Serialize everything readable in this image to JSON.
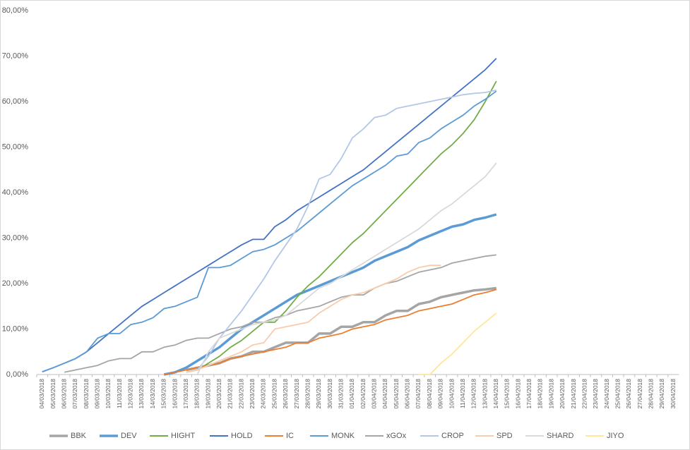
{
  "chart_data": {
    "type": "line",
    "categories": [
      "04/03/2018",
      "05/03/2018",
      "06/03/2018",
      "07/03/2018",
      "08/03/2018",
      "09/03/2018",
      "10/03/2018",
      "11/03/2018",
      "12/03/2018",
      "13/03/2018",
      "14/03/2018",
      "15/03/2018",
      "16/03/2018",
      "17/03/2018",
      "18/03/2018",
      "19/03/2018",
      "20/03/2018",
      "21/03/2018",
      "22/03/2018",
      "23/03/2018",
      "24/03/2018",
      "25/03/2018",
      "26/03/2018",
      "27/03/2018",
      "28/03/2018",
      "29/03/2018",
      "30/03/2018",
      "31/03/2018",
      "01/04/2018",
      "02/04/2018",
      "03/04/2018",
      "04/04/2018",
      "05/04/2018",
      "06/04/2018",
      "07/04/2018",
      "08/04/2018",
      "09/04/2018",
      "10/04/2018",
      "11/04/2018",
      "12/04/2018",
      "13/04/2018",
      "14/04/2018",
      "15/04/2018",
      "16/04/2018",
      "17/04/2018",
      "18/04/2018",
      "19/04/2018",
      "20/04/2018",
      "21/04/2018",
      "22/04/2018",
      "23/04/2018",
      "24/04/2018",
      "25/04/2018",
      "26/04/2018",
      "27/04/2018",
      "28/04/2018",
      "29/04/2018",
      "30/04/2018"
    ],
    "ylim": [
      0,
      80
    ],
    "yticks": [
      {
        "value": 0,
        "label": "0,00%"
      },
      {
        "value": 10,
        "label": "10,00%"
      },
      {
        "value": 20,
        "label": "20,00%"
      },
      {
        "value": 30,
        "label": "30,00%"
      },
      {
        "value": 40,
        "label": "40,00%"
      },
      {
        "value": 50,
        "label": "50,00%"
      },
      {
        "value": 60,
        "label": "60,00%"
      },
      {
        "value": 70,
        "label": "70,00%"
      },
      {
        "value": 80,
        "label": "80,00%"
      }
    ],
    "grid": false,
    "legend": "bottom",
    "series": [
      {
        "name": "BBK",
        "color": "#a5a5a5",
        "values": [
          null,
          null,
          null,
          null,
          null,
          null,
          null,
          null,
          null,
          null,
          null,
          null,
          null,
          1,
          1.5,
          2,
          2.5,
          3.5,
          4,
          5,
          5,
          6,
          7,
          7,
          7,
          9,
          9,
          10.5,
          10.5,
          11.5,
          11.5,
          13,
          14,
          14,
          15.5,
          16,
          17,
          17.5,
          18,
          18.5,
          18.7,
          19,
          null,
          null,
          null,
          null,
          null,
          null,
          null,
          null,
          null,
          null,
          null,
          null,
          null,
          null,
          null,
          null
        ]
      },
      {
        "name": "DEV",
        "color": "#5b9bd5",
        "values": [
          null,
          null,
          null,
          null,
          null,
          null,
          null,
          null,
          null,
          null,
          null,
          0,
          0.5,
          1.5,
          3,
          4.5,
          6,
          8,
          10,
          11.5,
          13,
          14.5,
          16,
          17.5,
          18.5,
          19.5,
          20.5,
          21.5,
          22.5,
          23.5,
          25,
          26,
          27,
          28,
          29.5,
          30.5,
          31.5,
          32.5,
          33,
          34,
          34.5,
          35.2,
          null,
          null,
          null,
          null,
          null,
          null,
          null,
          null,
          null,
          null,
          null,
          null,
          null,
          null,
          null,
          null
        ]
      },
      {
        "name": "HIGHT",
        "color": "#70ad47",
        "values": [
          null,
          null,
          null,
          null,
          null,
          null,
          null,
          null,
          null,
          null,
          null,
          null,
          null,
          0.5,
          1,
          2.5,
          4,
          6,
          7.5,
          9.5,
          11.5,
          11.5,
          14,
          17,
          19.5,
          21.5,
          24,
          26.5,
          29,
          31,
          33.5,
          36,
          38.5,
          41,
          43.5,
          46,
          48.5,
          50.5,
          53,
          56,
          60,
          64.5,
          null,
          null,
          null,
          null,
          null,
          null,
          null,
          null,
          null,
          null,
          null,
          null,
          null,
          null,
          null,
          null
        ]
      },
      {
        "name": "HOLD",
        "color": "#4472c4",
        "values": [
          0.6,
          1.5,
          2.5,
          3.5,
          5,
          7,
          9,
          11,
          13,
          15,
          16.5,
          18,
          19.5,
          21,
          22.5,
          24,
          25.5,
          27,
          28.5,
          29.7,
          29.7,
          32.5,
          34,
          36,
          37.5,
          39,
          40.5,
          42,
          43.5,
          45,
          47,
          49,
          51,
          53,
          55,
          57,
          59,
          61,
          63,
          65,
          67,
          69.5,
          null,
          null,
          null,
          null,
          null,
          null,
          null,
          null,
          null,
          null,
          null,
          null,
          null,
          null,
          null,
          null
        ]
      },
      {
        "name": "IC",
        "color": "#ed7d31",
        "values": [
          null,
          null,
          null,
          null,
          null,
          null,
          null,
          null,
          null,
          null,
          null,
          0,
          0.5,
          1,
          1.5,
          2,
          2.5,
          3.5,
          4,
          4.5,
          5,
          5.5,
          6,
          7,
          7,
          8,
          8.5,
          9,
          10,
          10.5,
          11,
          12,
          12.5,
          13,
          14,
          14.5,
          15,
          15.5,
          16.5,
          17.5,
          18,
          18.7,
          null,
          null,
          null,
          null,
          null,
          null,
          null,
          null,
          null,
          null,
          null,
          null,
          null,
          null,
          null,
          null
        ]
      },
      {
        "name": "MONK",
        "color": "#5b9bd5",
        "values": [
          0.6,
          1.5,
          2.5,
          3.5,
          5,
          8,
          9,
          9,
          11,
          11.5,
          12.5,
          14.5,
          15,
          16,
          17,
          23.5,
          23.5,
          24,
          25.5,
          27,
          27.5,
          28.5,
          30,
          31.5,
          33.5,
          35.5,
          37.5,
          39.5,
          41.5,
          43,
          44.5,
          46,
          48,
          48.5,
          51,
          52,
          54,
          55.5,
          57,
          59,
          60.5,
          62.3,
          null,
          null,
          null,
          null,
          null,
          null,
          null,
          null,
          null,
          null,
          null,
          null,
          null,
          null,
          null,
          null
        ]
      },
      {
        "name": "xGOx",
        "color": "#a5a5a5",
        "values": [
          null,
          null,
          0.5,
          1,
          1.5,
          2,
          3,
          3.5,
          3.5,
          5,
          5,
          6,
          6.5,
          7.5,
          8,
          8,
          9,
          10,
          10.5,
          11.5,
          11.5,
          12.5,
          13,
          14,
          14.5,
          15,
          16,
          17,
          17.5,
          17.5,
          19,
          20,
          20.5,
          21.5,
          22.5,
          23,
          23.5,
          24.5,
          25,
          25.5,
          26,
          26.3,
          null,
          null,
          null,
          null,
          null,
          null,
          null,
          null,
          null,
          null,
          null,
          null,
          null,
          null,
          null,
          null
        ]
      },
      {
        "name": "CROP",
        "color": "#b4c7e7",
        "values": [
          null,
          null,
          null,
          null,
          null,
          null,
          null,
          null,
          null,
          null,
          null,
          null,
          null,
          null,
          1,
          4,
          8,
          11,
          14,
          17.5,
          21,
          25,
          28.5,
          32,
          37,
          43,
          44,
          47.5,
          52,
          54,
          56.5,
          57,
          58.5,
          59,
          59.5,
          60,
          60.5,
          61,
          61.5,
          61.8,
          62,
          62.5,
          null,
          null,
          null,
          null,
          null,
          null,
          null,
          null,
          null,
          null,
          null,
          null,
          null,
          null,
          null,
          null
        ]
      },
      {
        "name": "SPD",
        "color": "#f8cbad",
        "values": [
          null,
          null,
          null,
          null,
          null,
          null,
          null,
          null,
          null,
          null,
          null,
          null,
          null,
          0.5,
          1,
          2,
          3,
          4,
          5,
          6.5,
          7,
          10,
          10.5,
          11,
          11.5,
          13.5,
          15,
          16.5,
          17.5,
          18,
          19,
          20,
          21,
          22.5,
          23.5,
          24,
          24,
          null,
          null,
          null,
          null,
          null,
          null,
          null,
          null,
          null,
          null,
          null,
          null,
          null,
          null,
          null,
          null,
          null,
          null,
          null,
          null,
          null
        ]
      },
      {
        "name": "SHARD",
        "color": "#d9d9d9",
        "values": [
          null,
          null,
          null,
          null,
          null,
          null,
          null,
          null,
          null,
          null,
          null,
          null,
          null,
          null,
          0,
          5,
          8,
          9,
          10,
          11,
          11.5,
          12,
          13,
          15,
          17,
          19,
          20,
          21.5,
          23,
          24.5,
          26,
          27.5,
          29,
          30.5,
          32,
          34,
          36,
          37.5,
          39.5,
          41.5,
          43.5,
          46.5,
          null,
          null,
          null,
          null,
          null,
          null,
          null,
          null,
          null,
          null,
          null,
          null,
          null,
          null,
          null,
          null
        ]
      },
      {
        "name": "JIYO",
        "color": "#ffe699",
        "values": [
          null,
          null,
          null,
          null,
          null,
          null,
          null,
          null,
          null,
          null,
          null,
          null,
          null,
          null,
          null,
          null,
          null,
          null,
          null,
          null,
          null,
          null,
          null,
          null,
          null,
          null,
          null,
          null,
          null,
          null,
          null,
          null,
          null,
          null,
          0,
          0,
          2.5,
          4.5,
          7,
          9.5,
          11.5,
          13.5,
          null,
          null,
          null,
          null,
          null,
          null,
          null,
          null,
          null,
          null,
          null,
          null,
          null,
          null,
          null,
          null
        ]
      }
    ]
  }
}
